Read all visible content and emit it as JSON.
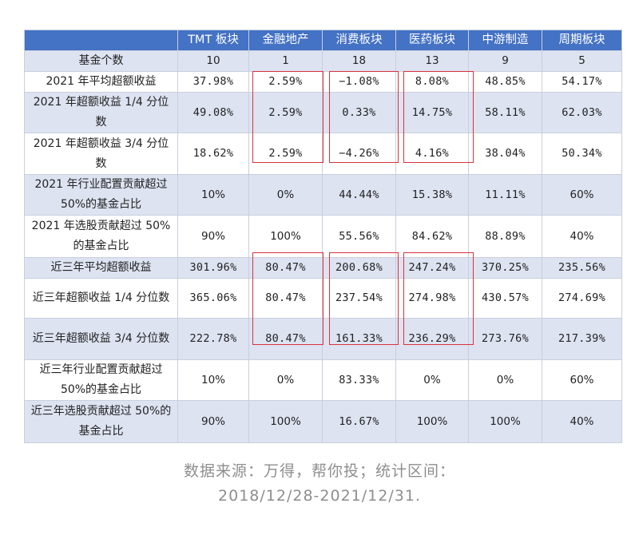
{
  "table": {
    "columns": [
      "",
      "TMT 板块",
      "金融地产",
      "消费板块",
      "医药板块",
      "中游制造",
      "周期板块"
    ],
    "rows": [
      {
        "label": "基金个数",
        "values": [
          "10",
          "1",
          "18",
          "13",
          "9",
          "5"
        ]
      },
      {
        "label": "2021 年平均超额收益",
        "values": [
          "37.98%",
          "2.59%",
          "−1.08%",
          "8.08%",
          "48.85%",
          "54.17%"
        ]
      },
      {
        "label": "2021 年超额收益 1/4 分位数",
        "values": [
          "49.08%",
          "2.59%",
          "0.33%",
          "14.75%",
          "58.11%",
          "62.03%"
        ]
      },
      {
        "label": "2021 年超额收益 3/4 分位数",
        "values": [
          "18.62%",
          "2.59%",
          "−4.26%",
          "4.16%",
          "38.04%",
          "50.34%"
        ]
      },
      {
        "label": "2021 年行业配置贡献超过 50%的基金占比",
        "values": [
          "10%",
          "0%",
          "44.44%",
          "15.38%",
          "11.11%",
          "60%"
        ]
      },
      {
        "label": "2021 年选股贡献超过 50%的基金占比",
        "values": [
          "90%",
          "100%",
          "55.56%",
          "84.62%",
          "88.89%",
          "40%"
        ]
      },
      {
        "label": "近三年平均超额收益",
        "values": [
          "301.96%",
          "80.47%",
          "200.68%",
          "247.24%",
          "370.25%",
          "235.56%"
        ]
      },
      {
        "label": "近三年超额收益 1/4 分位数",
        "values": [
          "365.06%",
          "80.47%",
          "237.54%",
          "274.98%",
          "430.57%",
          "274.69%"
        ]
      },
      {
        "label": "近三年超额收益 3/4 分位数",
        "values": [
          "222.78%",
          "80.47%",
          "161.33%",
          "236.29%",
          "273.76%",
          "217.39%"
        ]
      },
      {
        "label": "近三年行业配置贡献超过 50%的基金占比",
        "values": [
          "10%",
          "0%",
          "83.33%",
          "0%",
          "0%",
          "60%"
        ]
      },
      {
        "label": "近三年选股贡献超过 50%的基金占比",
        "values": [
          "90%",
          "100%",
          "16.67%",
          "100%",
          "100%",
          "40%"
        ]
      }
    ]
  },
  "caption": {
    "line1": "数据来源：万得，帮你投；统计区间：",
    "line2": "2018/12/28-2021/12/31."
  },
  "colors": {
    "header": "#4472c4",
    "band": "#dde3f1",
    "highlight": "#d9323f",
    "caption": "#8e8e8e"
  }
}
